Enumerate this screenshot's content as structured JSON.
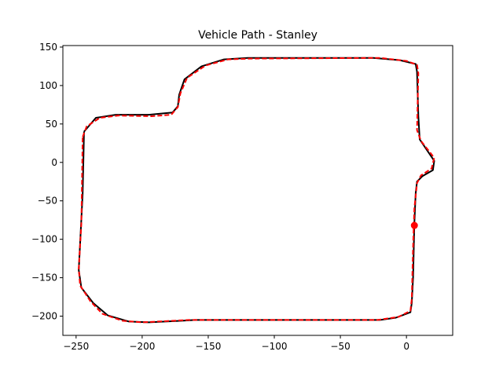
{
  "chart_data": {
    "type": "line",
    "title": "Vehicle Path - Stanley",
    "xlabel": "",
    "ylabel": "",
    "xlim": [
      -260,
      35
    ],
    "ylim": [
      -225,
      152
    ],
    "xticks": [
      -250,
      -200,
      -150,
      -100,
      -50,
      0
    ],
    "yticks": [
      150,
      100,
      50,
      0,
      -50,
      -100,
      -150,
      -200
    ],
    "grid": false,
    "series": [
      {
        "style": "solid",
        "color": "#000000",
        "points": [
          [
            -244,
            40
          ],
          [
            -235,
            58
          ],
          [
            -220,
            62
          ],
          [
            -195,
            62
          ],
          [
            -177,
            65
          ],
          [
            -173,
            73
          ],
          [
            -172,
            88
          ],
          [
            -168,
            108
          ],
          [
            -155,
            125
          ],
          [
            -138,
            134
          ],
          [
            -120,
            136
          ],
          [
            -25,
            136
          ],
          [
            -5,
            133
          ],
          [
            7,
            128
          ],
          [
            8,
            118
          ],
          [
            9,
            60
          ],
          [
            10,
            30
          ],
          [
            21,
            2
          ],
          [
            20,
            -10
          ],
          [
            12,
            -18
          ],
          [
            8,
            -25
          ],
          [
            7,
            -40
          ],
          [
            6,
            -80
          ],
          [
            5,
            -150
          ],
          [
            4,
            -183
          ],
          [
            3,
            -195
          ],
          [
            -8,
            -202
          ],
          [
            -20,
            -205
          ],
          [
            -100,
            -205
          ],
          [
            -160,
            -205
          ],
          [
            -170,
            -206
          ],
          [
            -195,
            -208
          ],
          [
            -210,
            -207
          ],
          [
            -226,
            -199
          ],
          [
            -237,
            -183
          ],
          [
            -246,
            -163
          ],
          [
            -248,
            -140
          ],
          [
            -245,
            -40
          ],
          [
            -244,
            40
          ]
        ]
      },
      {
        "style": "dashed",
        "color": "#ff0000",
        "points": [
          [
            -245,
            33
          ],
          [
            -242,
            47
          ],
          [
            -232,
            58
          ],
          [
            -218,
            61
          ],
          [
            -193,
            60
          ],
          [
            -178,
            62
          ],
          [
            -173,
            72
          ],
          [
            -171,
            90
          ],
          [
            -166,
            110
          ],
          [
            -152,
            126
          ],
          [
            -135,
            134
          ],
          [
            -118,
            135
          ],
          [
            -20,
            136
          ],
          [
            0,
            132
          ],
          [
            8,
            127
          ],
          [
            9,
            116
          ],
          [
            8,
            42
          ],
          [
            11,
            28
          ],
          [
            21,
            6
          ],
          [
            19,
            -8
          ],
          [
            11,
            -17
          ],
          [
            8,
            -27
          ],
          [
            6,
            -60
          ],
          [
            5,
            -110
          ],
          [
            4,
            -178
          ],
          [
            3,
            -193
          ],
          [
            -6,
            -201
          ],
          [
            -22,
            -205
          ],
          [
            -100,
            -205
          ],
          [
            -165,
            -205
          ],
          [
            -200,
            -208
          ],
          [
            -215,
            -206
          ],
          [
            -230,
            -197
          ],
          [
            -239,
            -181
          ],
          [
            -247,
            -160
          ],
          [
            -248,
            -138
          ],
          [
            -246,
            -80
          ],
          [
            -245,
            33
          ]
        ]
      }
    ],
    "current_position": {
      "x": 6,
      "y": -82,
      "color": "#ff0000"
    }
  }
}
